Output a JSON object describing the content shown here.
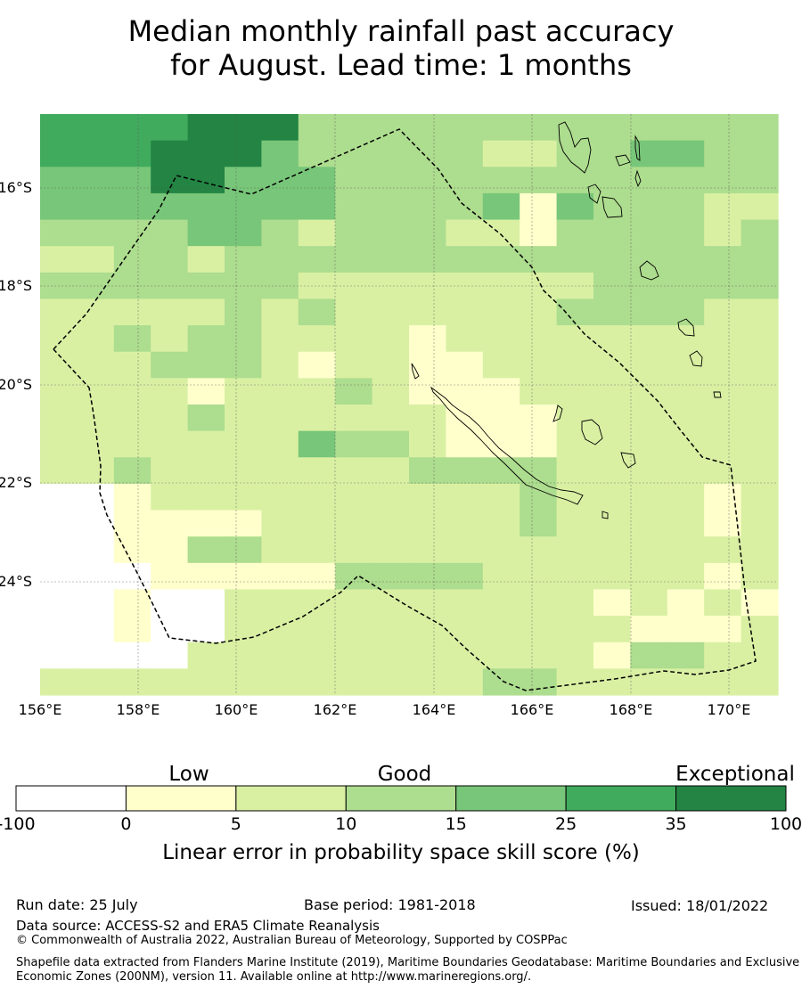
{
  "title": {
    "line1": "Median monthly rainfall past accuracy",
    "line2": "for August. Lead time: 1 months"
  },
  "map": {
    "x_ticks": [
      "156°E",
      "158°E",
      "160°E",
      "162°E",
      "164°E",
      "166°E",
      "168°E",
      "170°E"
    ],
    "y_ticks": [
      "16°S",
      "18°S",
      "20°S",
      "22°S",
      "24°S"
    ],
    "boundary_style": "dashed",
    "grid": true
  },
  "colorbar": {
    "categories": [
      "Low",
      "Good",
      "Exceptional"
    ],
    "ticks": [
      "-100",
      "0",
      "5",
      "10",
      "15",
      "25",
      "35",
      "100"
    ],
    "colors": [
      "#ffffff",
      "#ffffcc",
      "#d9f0a3",
      "#addd8e",
      "#78c679",
      "#41ab5d",
      "#238443"
    ],
    "label": "Linear error in probability space skill score (%)"
  },
  "footer": {
    "run_date": "Run date: 25 July",
    "base_period": "Base period: 1981-2018",
    "issued": "Issued: 18/01/2022",
    "data_source": "Data source: ACCESS-S2 and ERA5 Climate Reanalysis",
    "copyright": "© Commonwealth of Australia 2022, Australian Bureau of Meteorology, Supported by COSPPac",
    "shapefile": "Shapefile data extracted from Flanders Marine Institute (2019), Maritime Boundaries Geodatabase: Maritime Boundaries and Exclusive Economic Zones (200NM), version 11. Available online at http://www.marineregions.org/."
  },
  "chart_data": {
    "type": "heatmap",
    "title": "Median monthly rainfall past accuracy for August. Lead time: 1 months",
    "x_range_deg_e": [
      156,
      171
    ],
    "y_range_deg_s": [
      14.6,
      26.4
    ],
    "resolution_deg": 0.833,
    "rows_top_to_bottom": [
      "55556663333333333333",
      "55566643333322334433",
      "44466444333333333333",
      "44444444333341433322",
      "33334432333221333323",
      "22332333333333333333",
      "33333332222222233333",
      "22222323222222333322",
      "22323322221222222222",
      "22233321221122222222",
      "22221222321112222222",
      "22223222222111222222",
      "22222224332111222222",
      "22322222223333222222",
      "00122222222223222212",
      "00111122222223222212",
      "00113322222222222222",
      "00011111333322222212",
      "00100222222222212121",
      "00100222222222221112",
      "00002222222222213322",
      "22222222222233222222"
    ]
  }
}
